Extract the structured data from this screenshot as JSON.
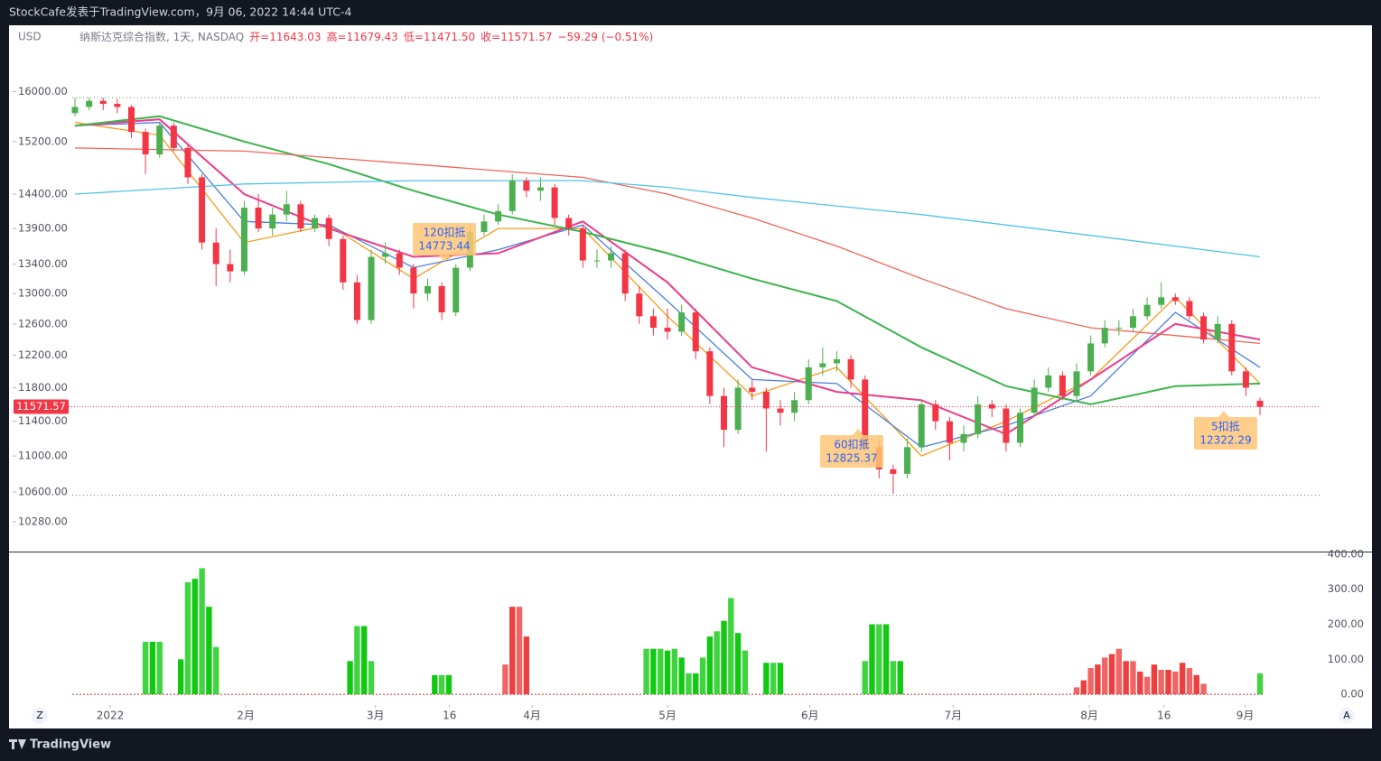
{
  "header": {
    "title": "StockCafe发表于TradingView.com，9月 06, 2022 14:44 UTC-4"
  },
  "chart_data": {
    "type": "candlestick",
    "currency": "USD",
    "legend": [
      "纳斯达克综合指数, 1天, NASDAQ",
      "开=11643.03",
      "高=11679.43",
      "低=11471.50",
      "收=11571.57",
      "−59.29 (−0.51%)"
    ],
    "up_color": "#4caf50",
    "down_color": "#f23645",
    "candles": {
      "x": [
        0,
        2,
        4,
        6,
        8,
        10,
        12,
        14,
        16,
        18,
        20,
        22,
        24,
        26,
        28,
        30,
        32,
        34,
        36,
        38,
        40,
        42,
        44,
        46,
        48,
        50,
        52,
        54,
        56,
        58,
        60,
        62,
        64,
        66,
        68,
        70,
        72,
        74,
        76,
        78,
        80,
        82,
        84,
        86,
        88,
        90,
        92,
        94,
        96,
        98,
        100,
        102,
        104,
        106,
        108,
        110,
        112,
        114,
        116,
        118,
        120,
        122,
        124,
        126,
        128,
        130,
        132,
        134,
        136,
        138,
        140,
        142,
        144,
        146,
        148,
        150,
        152,
        154,
        156,
        158,
        160,
        162,
        164,
        166,
        168
      ],
      "open": [
        15650,
        15750,
        15850,
        15800,
        15750,
        15350,
        15000,
        15450,
        15100,
        14650,
        13700,
        13400,
        13300,
        14200,
        13900,
        14100,
        14250,
        13900,
        14050,
        13750,
        13150,
        12650,
        13500,
        13550,
        13350,
        13000,
        13100,
        12750,
        13350,
        13850,
        14000,
        14150,
        14600,
        14450,
        14500,
        14050,
        13900,
        13450,
        13450,
        13550,
        13000,
        12700,
        12550,
        12500,
        12750,
        12250,
        11700,
        11300,
        11800,
        11750,
        11550,
        11500,
        11650,
        12050,
        12100,
        12150,
        11900,
        11100,
        10850,
        10800,
        11100,
        11600,
        11400,
        11150,
        11250,
        11600,
        11550,
        11150,
        11500,
        11800,
        11950,
        11700,
        12000,
        12350,
        12550,
        12550,
        12700,
        12850,
        12950,
        12900,
        12700,
        12400,
        12600,
        12000,
        11643.03
      ],
      "high": [
        15900,
        15900,
        15900,
        15880,
        15780,
        15400,
        15500,
        15500,
        15150,
        14700,
        13900,
        13600,
        14300,
        14400,
        14200,
        14450,
        14300,
        14100,
        14100,
        13800,
        13250,
        13600,
        13700,
        13600,
        13400,
        13200,
        13150,
        13400,
        13950,
        14100,
        14250,
        14700,
        14650,
        14650,
        14550,
        14100,
        13950,
        13600,
        13650,
        13600,
        13100,
        12800,
        12800,
        12850,
        12800,
        12300,
        11800,
        11900,
        11900,
        11800,
        11650,
        11750,
        12150,
        12300,
        12250,
        12200,
        11950,
        11200,
        10900,
        11200,
        11650,
        11650,
        11450,
        11350,
        11700,
        11650,
        11600,
        11550,
        11900,
        12050,
        12000,
        12100,
        12450,
        12650,
        12650,
        12800,
        12950,
        13150,
        13000,
        12950,
        12750,
        12700,
        12650,
        12050,
        11679.43
      ],
      "low": [
        15600,
        15700,
        15700,
        15650,
        15250,
        14700,
        14950,
        15050,
        14550,
        13600,
        13100,
        13150,
        13250,
        13850,
        13800,
        14000,
        13850,
        13850,
        13650,
        13050,
        12600,
        12600,
        13400,
        13250,
        12800,
        12900,
        12650,
        12700,
        13300,
        13800,
        13950,
        14100,
        14350,
        14300,
        13950,
        13800,
        13350,
        13350,
        13350,
        12900,
        12600,
        12450,
        12400,
        12450,
        12150,
        11600,
        11100,
        11250,
        11650,
        11050,
        11350,
        11400,
        11600,
        11950,
        12000,
        11800,
        11050,
        10750,
        10580,
        10750,
        11050,
        11300,
        10950,
        11050,
        11200,
        11450,
        11050,
        11100,
        11450,
        11750,
        11650,
        11650,
        11950,
        12300,
        12450,
        12500,
        12650,
        12800,
        12850,
        12650,
        12350,
        12350,
        11950,
        11700,
        11471.5
      ],
      "close": [
        15750,
        15850,
        15800,
        15750,
        15350,
        15000,
        15450,
        15100,
        14650,
        13700,
        13400,
        13300,
        14200,
        13900,
        14100,
        14250,
        13900,
        14050,
        13750,
        13150,
        12650,
        13500,
        13550,
        13350,
        13000,
        13100,
        12750,
        13350,
        13850,
        14000,
        14150,
        14600,
        14450,
        14500,
        14050,
        13900,
        13450,
        13450,
        13550,
        13000,
        12700,
        12550,
        12500,
        12750,
        12250,
        11700,
        11300,
        11800,
        11750,
        11550,
        11500,
        11650,
        12050,
        12100,
        12150,
        11900,
        11100,
        10850,
        10800,
        11100,
        11600,
        11400,
        11150,
        11250,
        11600,
        11550,
        11150,
        11500,
        11800,
        11950,
        11700,
        12000,
        12350,
        12550,
        12550,
        12700,
        12850,
        12950,
        12900,
        12700,
        12400,
        12600,
        12000,
        11800,
        11571.57
      ]
    },
    "moving_averages": [
      {
        "color": "#f59c1a",
        "x": [
          0,
          12,
          24,
          36,
          48,
          60,
          72,
          84,
          96,
          108,
          120,
          132,
          144,
          156,
          168
        ],
        "values": [
          15500,
          15300,
          13700,
          13950,
          13200,
          13900,
          13900,
          12700,
          11700,
          12050,
          11000,
          11400,
          11900,
          12950,
          11850
        ]
      },
      {
        "color": "#4a7fe0",
        "x": [
          0,
          12,
          24,
          36,
          48,
          60,
          72,
          84,
          96,
          108,
          120,
          132,
          144,
          156,
          168
        ],
        "values": [
          15450,
          15500,
          14000,
          13950,
          13350,
          13600,
          13950,
          12900,
          11900,
          11850,
          11100,
          11350,
          11700,
          12750,
          12050
        ]
      },
      {
        "color": "#ec3d8c",
        "x": [
          0,
          12,
          24,
          36,
          48,
          60,
          72,
          84,
          96,
          108,
          120,
          132,
          144,
          156,
          168
        ],
        "values": [
          15450,
          15550,
          14400,
          13900,
          13500,
          13550,
          14000,
          13150,
          12050,
          11750,
          11650,
          11250,
          11900,
          12600,
          12400
        ]
      },
      {
        "color": "#3cb44b",
        "x": [
          0,
          12,
          24,
          36,
          48,
          60,
          72,
          84,
          96,
          108,
          120,
          132,
          144,
          156,
          168
        ],
        "values": [
          15450,
          15600,
          15200,
          14850,
          14450,
          14100,
          13850,
          13550,
          13200,
          12900,
          12300,
          11820,
          11600,
          11820,
          11850
        ]
      },
      {
        "color": "#f0645a",
        "x": [
          0,
          24,
          48,
          72,
          84,
          96,
          108,
          120,
          132,
          144,
          156,
          168
        ],
        "values": [
          15100,
          15050,
          14850,
          14650,
          14400,
          14050,
          13650,
          13200,
          12800,
          12550,
          12450,
          12350
        ]
      },
      {
        "color": "#4fc3e8",
        "x": [
          0,
          24,
          48,
          72,
          84,
          96,
          120,
          144,
          168
        ],
        "values": [
          14400,
          14550,
          14600,
          14600,
          14500,
          14350,
          14100,
          13800,
          13500
        ]
      }
    ],
    "reference_lines": [
      15900,
      10565
    ],
    "annotations": [
      {
        "label": "120扣抵",
        "value": 14773.44
      },
      {
        "label": "60扣抵",
        "value": 12825.37
      },
      {
        "label": "5扣抵",
        "value": 12322.29
      }
    ],
    "ylim": [
      9970,
      17130
    ],
    "log_scale": true,
    "yticks": [
      {
        "value": 16000,
        "label": "16000.00"
      },
      {
        "value": 15200,
        "label": "15200.00"
      },
      {
        "value": 14400,
        "label": "14400.00"
      },
      {
        "value": 13900,
        "label": "13900.00"
      },
      {
        "value": 13400,
        "label": "13400.00"
      },
      {
        "value": 13000,
        "label": "13000.00"
      },
      {
        "value": 12600,
        "label": "12600.00"
      },
      {
        "value": 12200,
        "label": "12200.00"
      },
      {
        "value": 11800,
        "label": "11800.00"
      },
      {
        "value": 11400,
        "label": "11400.00"
      },
      {
        "value": 11000,
        "label": "11000.00"
      },
      {
        "value": 10600,
        "label": "10600.00"
      },
      {
        "value": 10280,
        "label": "10280.00"
      }
    ],
    "xlim": [
      -9.35,
      177.6
    ],
    "xticks": [
      {
        "value": 5,
        "label": "2022"
      },
      {
        "value": 24.2,
        "label": "2月"
      },
      {
        "value": 42.6,
        "label": "3月"
      },
      {
        "value": 53.1,
        "label": "16"
      },
      {
        "value": 64.8,
        "label": "4月"
      },
      {
        "value": 84,
        "label": "5月"
      },
      {
        "value": 104.2,
        "label": "6月"
      },
      {
        "value": 124.5,
        "label": "7月"
      },
      {
        "value": 143.8,
        "label": "8月"
      },
      {
        "value": 154.4,
        "label": "16"
      },
      {
        "value": 165.9,
        "label": "9月"
      }
    ],
    "volume": {
      "type": "histogram",
      "ylim": [
        -28,
        405
      ],
      "yticks": [
        {
          "value": 0,
          "label": "0.00"
        },
        {
          "value": 100,
          "label": "100.00"
        },
        {
          "value": 200,
          "label": "200.00"
        },
        {
          "value": 300,
          "label": "300.00"
        },
        {
          "value": 400,
          "label": "400.00"
        }
      ],
      "series": [
        {
          "color": "#12c912",
          "x": [
            10,
            11,
            12,
            15,
            16,
            17,
            18,
            19,
            20,
            39,
            40,
            41,
            42,
            51,
            52,
            53,
            81,
            82,
            83,
            84,
            85,
            86,
            87,
            88,
            89,
            90,
            91,
            92,
            93,
            94,
            95,
            98,
            99,
            100,
            112,
            113,
            114,
            115,
            116,
            117,
            168
          ],
          "values": [
            150,
            150,
            150,
            100,
            320,
            330,
            360,
            250,
            135,
            95,
            195,
            195,
            95,
            55,
            55,
            55,
            130,
            130,
            130,
            125,
            130,
            105,
            60,
            60,
            105,
            165,
            180,
            210,
            275,
            175,
            125,
            90,
            90,
            90,
            95,
            200,
            200,
            200,
            95,
            95,
            60
          ]
        },
        {
          "color": "#ef3e3e",
          "x": [
            61,
            62,
            63,
            64,
            142,
            143,
            144,
            145,
            146,
            147,
            148,
            149,
            150,
            151,
            152,
            153,
            154,
            155,
            156,
            157,
            158,
            159,
            160
          ],
          "values": [
            85,
            250,
            250,
            165,
            20,
            40,
            75,
            85,
            105,
            115,
            130,
            95,
            95,
            65,
            50,
            85,
            70,
            70,
            65,
            90,
            75,
            55,
            30
          ]
        }
      ]
    }
  },
  "footer": {
    "brand": "TradingView",
    "buttons": [
      "Z",
      "A"
    ]
  }
}
